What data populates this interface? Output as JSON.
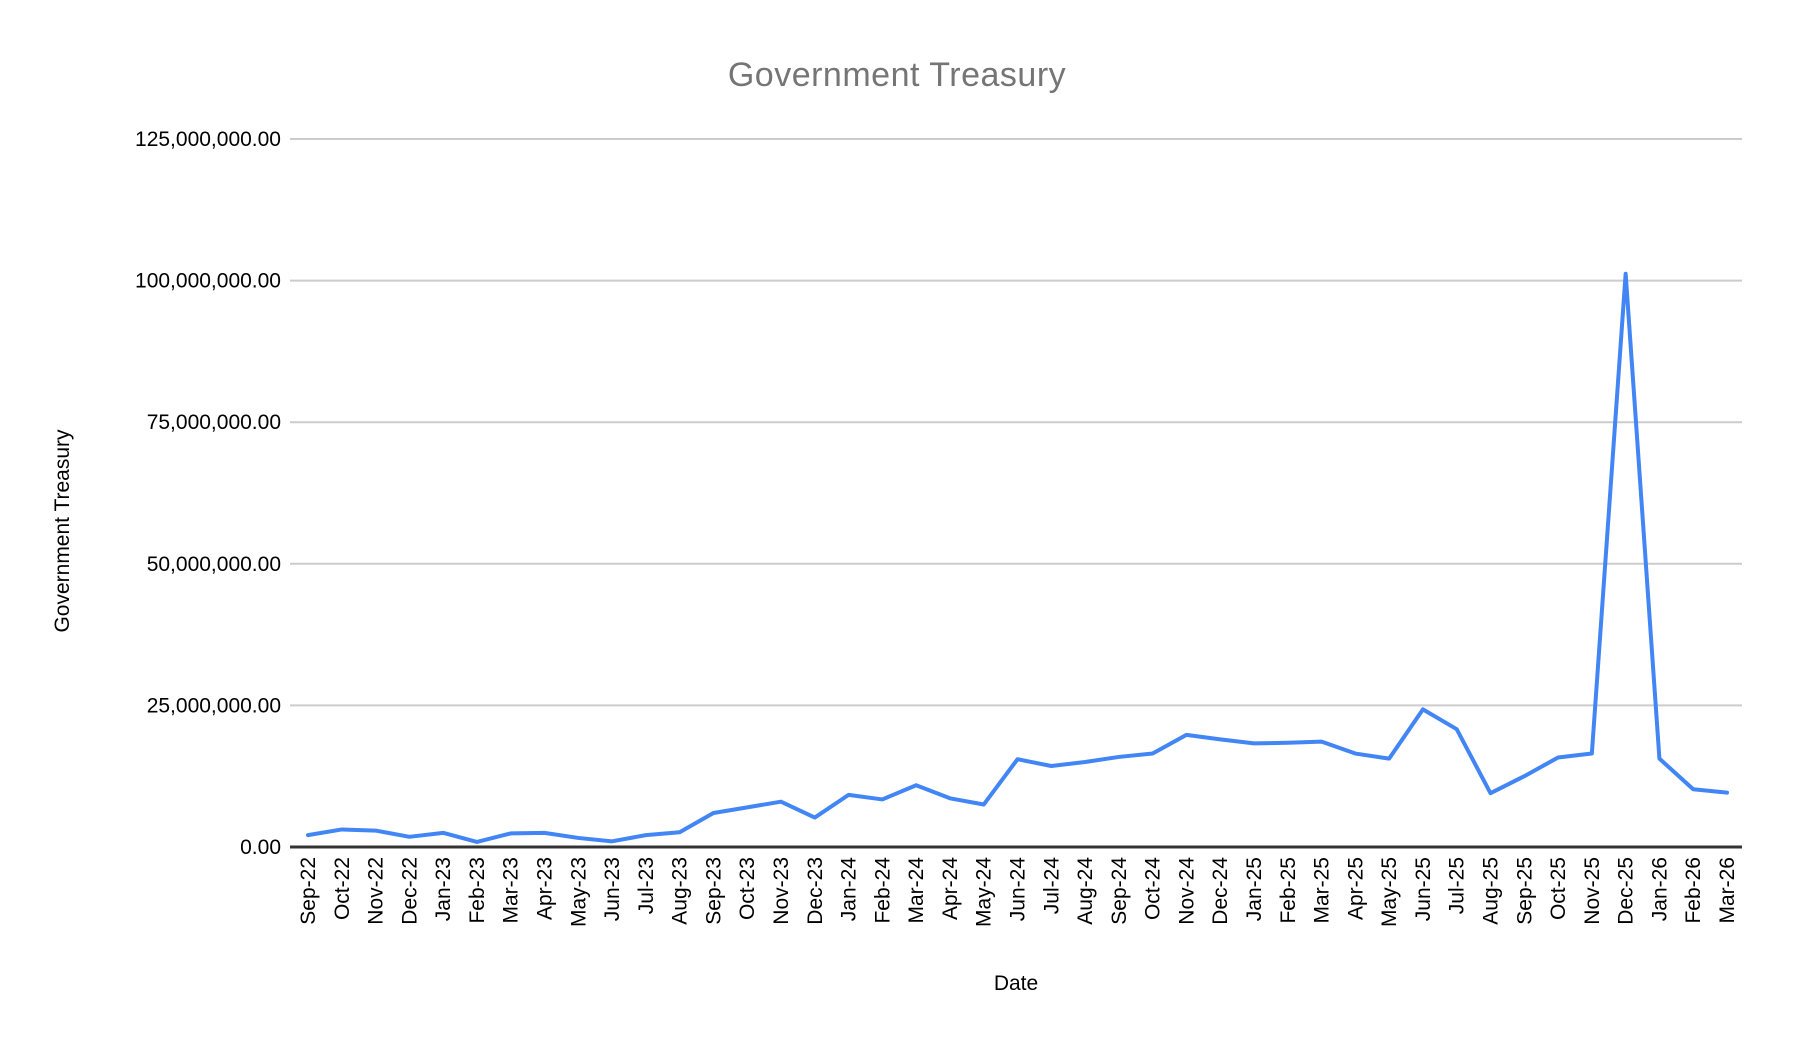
{
  "chart_data": {
    "type": "line",
    "title": "Government Treasury",
    "xlabel": "Date",
    "ylabel": "Government Treasury",
    "legend": "none",
    "grid": true,
    "ylim": [
      0,
      125000000
    ],
    "y_ticks": [
      0,
      25000000,
      50000000,
      75000000,
      100000000,
      125000000
    ],
    "y_tick_labels": [
      "0.00",
      "25,000,000.00",
      "50,000,000.00",
      "75,000,000.00",
      "100,000,000.00",
      "125,000,000.00"
    ],
    "categories": [
      "Sep-22",
      "Oct-22",
      "Nov-22",
      "Dec-22",
      "Jan-23",
      "Feb-23",
      "Mar-23",
      "Apr-23",
      "May-23",
      "Jun-23",
      "Jul-23",
      "Aug-23",
      "Sep-23",
      "Oct-23",
      "Nov-23",
      "Dec-23",
      "Jan-24",
      "Feb-24",
      "Mar-24",
      "Apr-24",
      "May-24",
      "Jun-24",
      "Jul-24",
      "Aug-24",
      "Sep-24",
      "Oct-24",
      "Nov-24",
      "Dec-24",
      "Jan-25",
      "Feb-25",
      "Mar-25",
      "Apr-25",
      "May-25",
      "Jun-25",
      "Jul-25",
      "Aug-25",
      "Sep-25",
      "Oct-25",
      "Nov-25",
      "Dec-25",
      "Jan-26",
      "Feb-26",
      "Mar-26"
    ],
    "values": [
      2100000,
      3100000,
      2900000,
      1800000,
      2500000,
      900000,
      2400000,
      2500000,
      1600000,
      1000000,
      2100000,
      2600000,
      6000000,
      7000000,
      8000000,
      5200000,
      9200000,
      8400000,
      10900000,
      8600000,
      7500000,
      15500000,
      14300000,
      15000000,
      15900000,
      16500000,
      19800000,
      19000000,
      18300000,
      18400000,
      18600000,
      16500000,
      15600000,
      24300000,
      20800000,
      9500000,
      12500000,
      15800000,
      16500000,
      101200000,
      15600000,
      10200000,
      9600000
    ],
    "colors": {
      "series": "#4285f4",
      "gridline": "#cccccc",
      "axis_baseline": "#333333",
      "title_text": "#757575",
      "tick_text": "#000000",
      "axis_title_text": "#000000",
      "background": "#ffffff"
    }
  }
}
